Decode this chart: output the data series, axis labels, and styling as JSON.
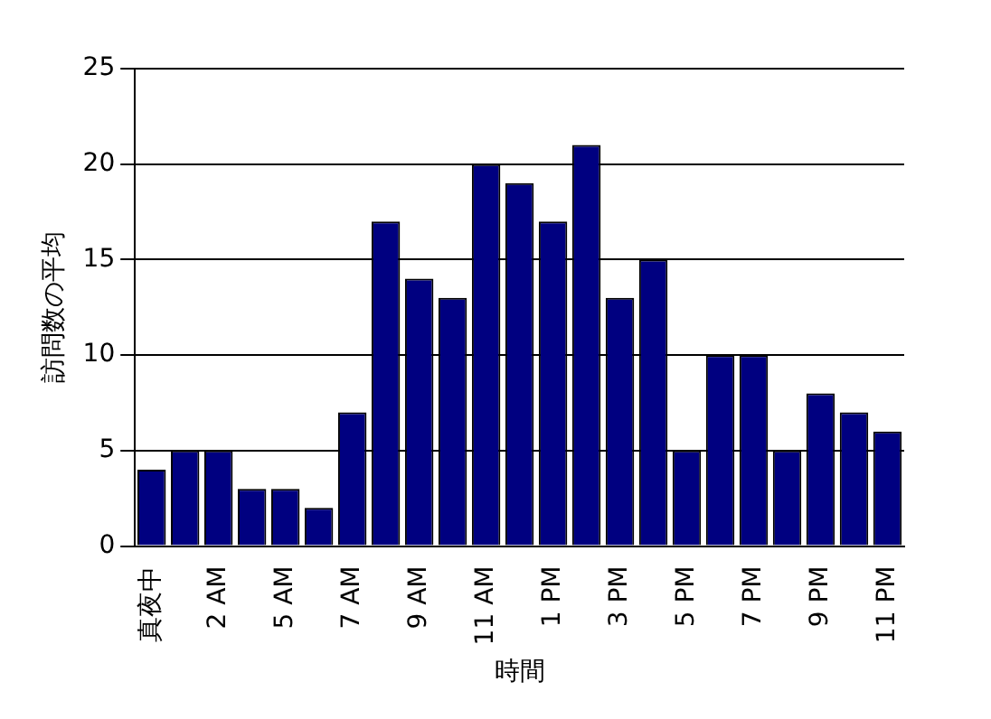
{
  "chart_data": {
    "type": "bar",
    "xlabel": "時間",
    "ylabel": "訪問数の平均",
    "categories": [
      "真夜中",
      null,
      "2 AM",
      null,
      "5 AM",
      null,
      "7 AM",
      null,
      "9 AM",
      null,
      "11 AM",
      null,
      "1 PM",
      null,
      "3 PM",
      null,
      "5 PM",
      null,
      "7 PM",
      null,
      "9 PM",
      null,
      "11 PM"
    ],
    "values": [
      4,
      5,
      5,
      3,
      3,
      2,
      7,
      17,
      14,
      13,
      20,
      19,
      17,
      21,
      13,
      15,
      5,
      10,
      10,
      5,
      8,
      7,
      6
    ],
    "color": "#000080",
    "ylim": [
      0,
      25
    ],
    "yticks": [
      0,
      5,
      10,
      15,
      20,
      25
    ],
    "grid": "y",
    "legend": false
  }
}
